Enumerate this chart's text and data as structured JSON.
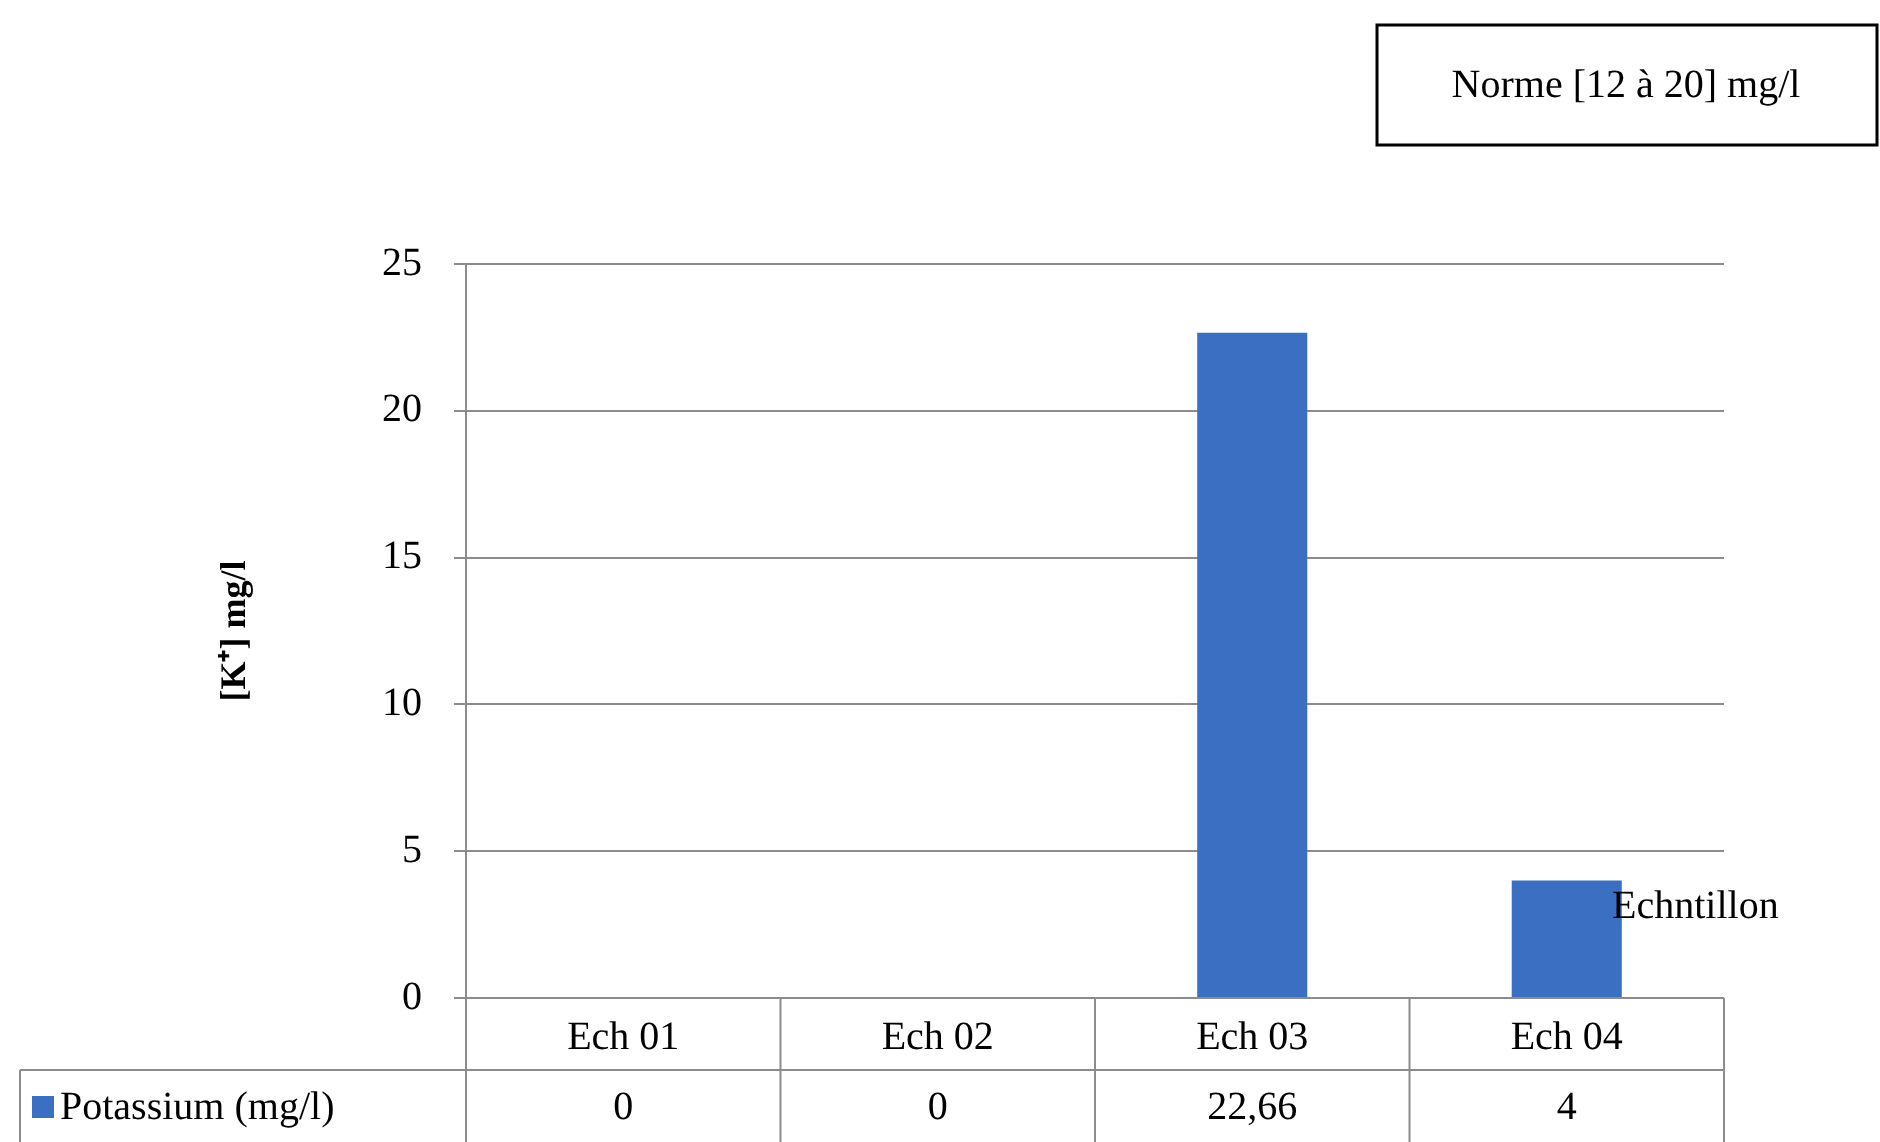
{
  "chart_data": {
    "type": "bar",
    "ylabel": "[K⁺] mg/l",
    "annotations": [
      "Norme [12 à 20] mg/l",
      "Echntillon"
    ],
    "categories": [
      "Ech 01",
      "Ech 02",
      "Ech 03",
      "Ech 04"
    ],
    "series": [
      {
        "name": "Potassium (mg/l)",
        "color": "#3b6fc1",
        "values": [
          0,
          0,
          22.66,
          4
        ]
      }
    ],
    "value_labels": [
      "0",
      "0",
      "22,66",
      "4"
    ],
    "ylim": [
      0,
      25
    ],
    "yticks": [
      0,
      5,
      10,
      15,
      20,
      25
    ],
    "grid": "y",
    "legend": "bottom"
  }
}
